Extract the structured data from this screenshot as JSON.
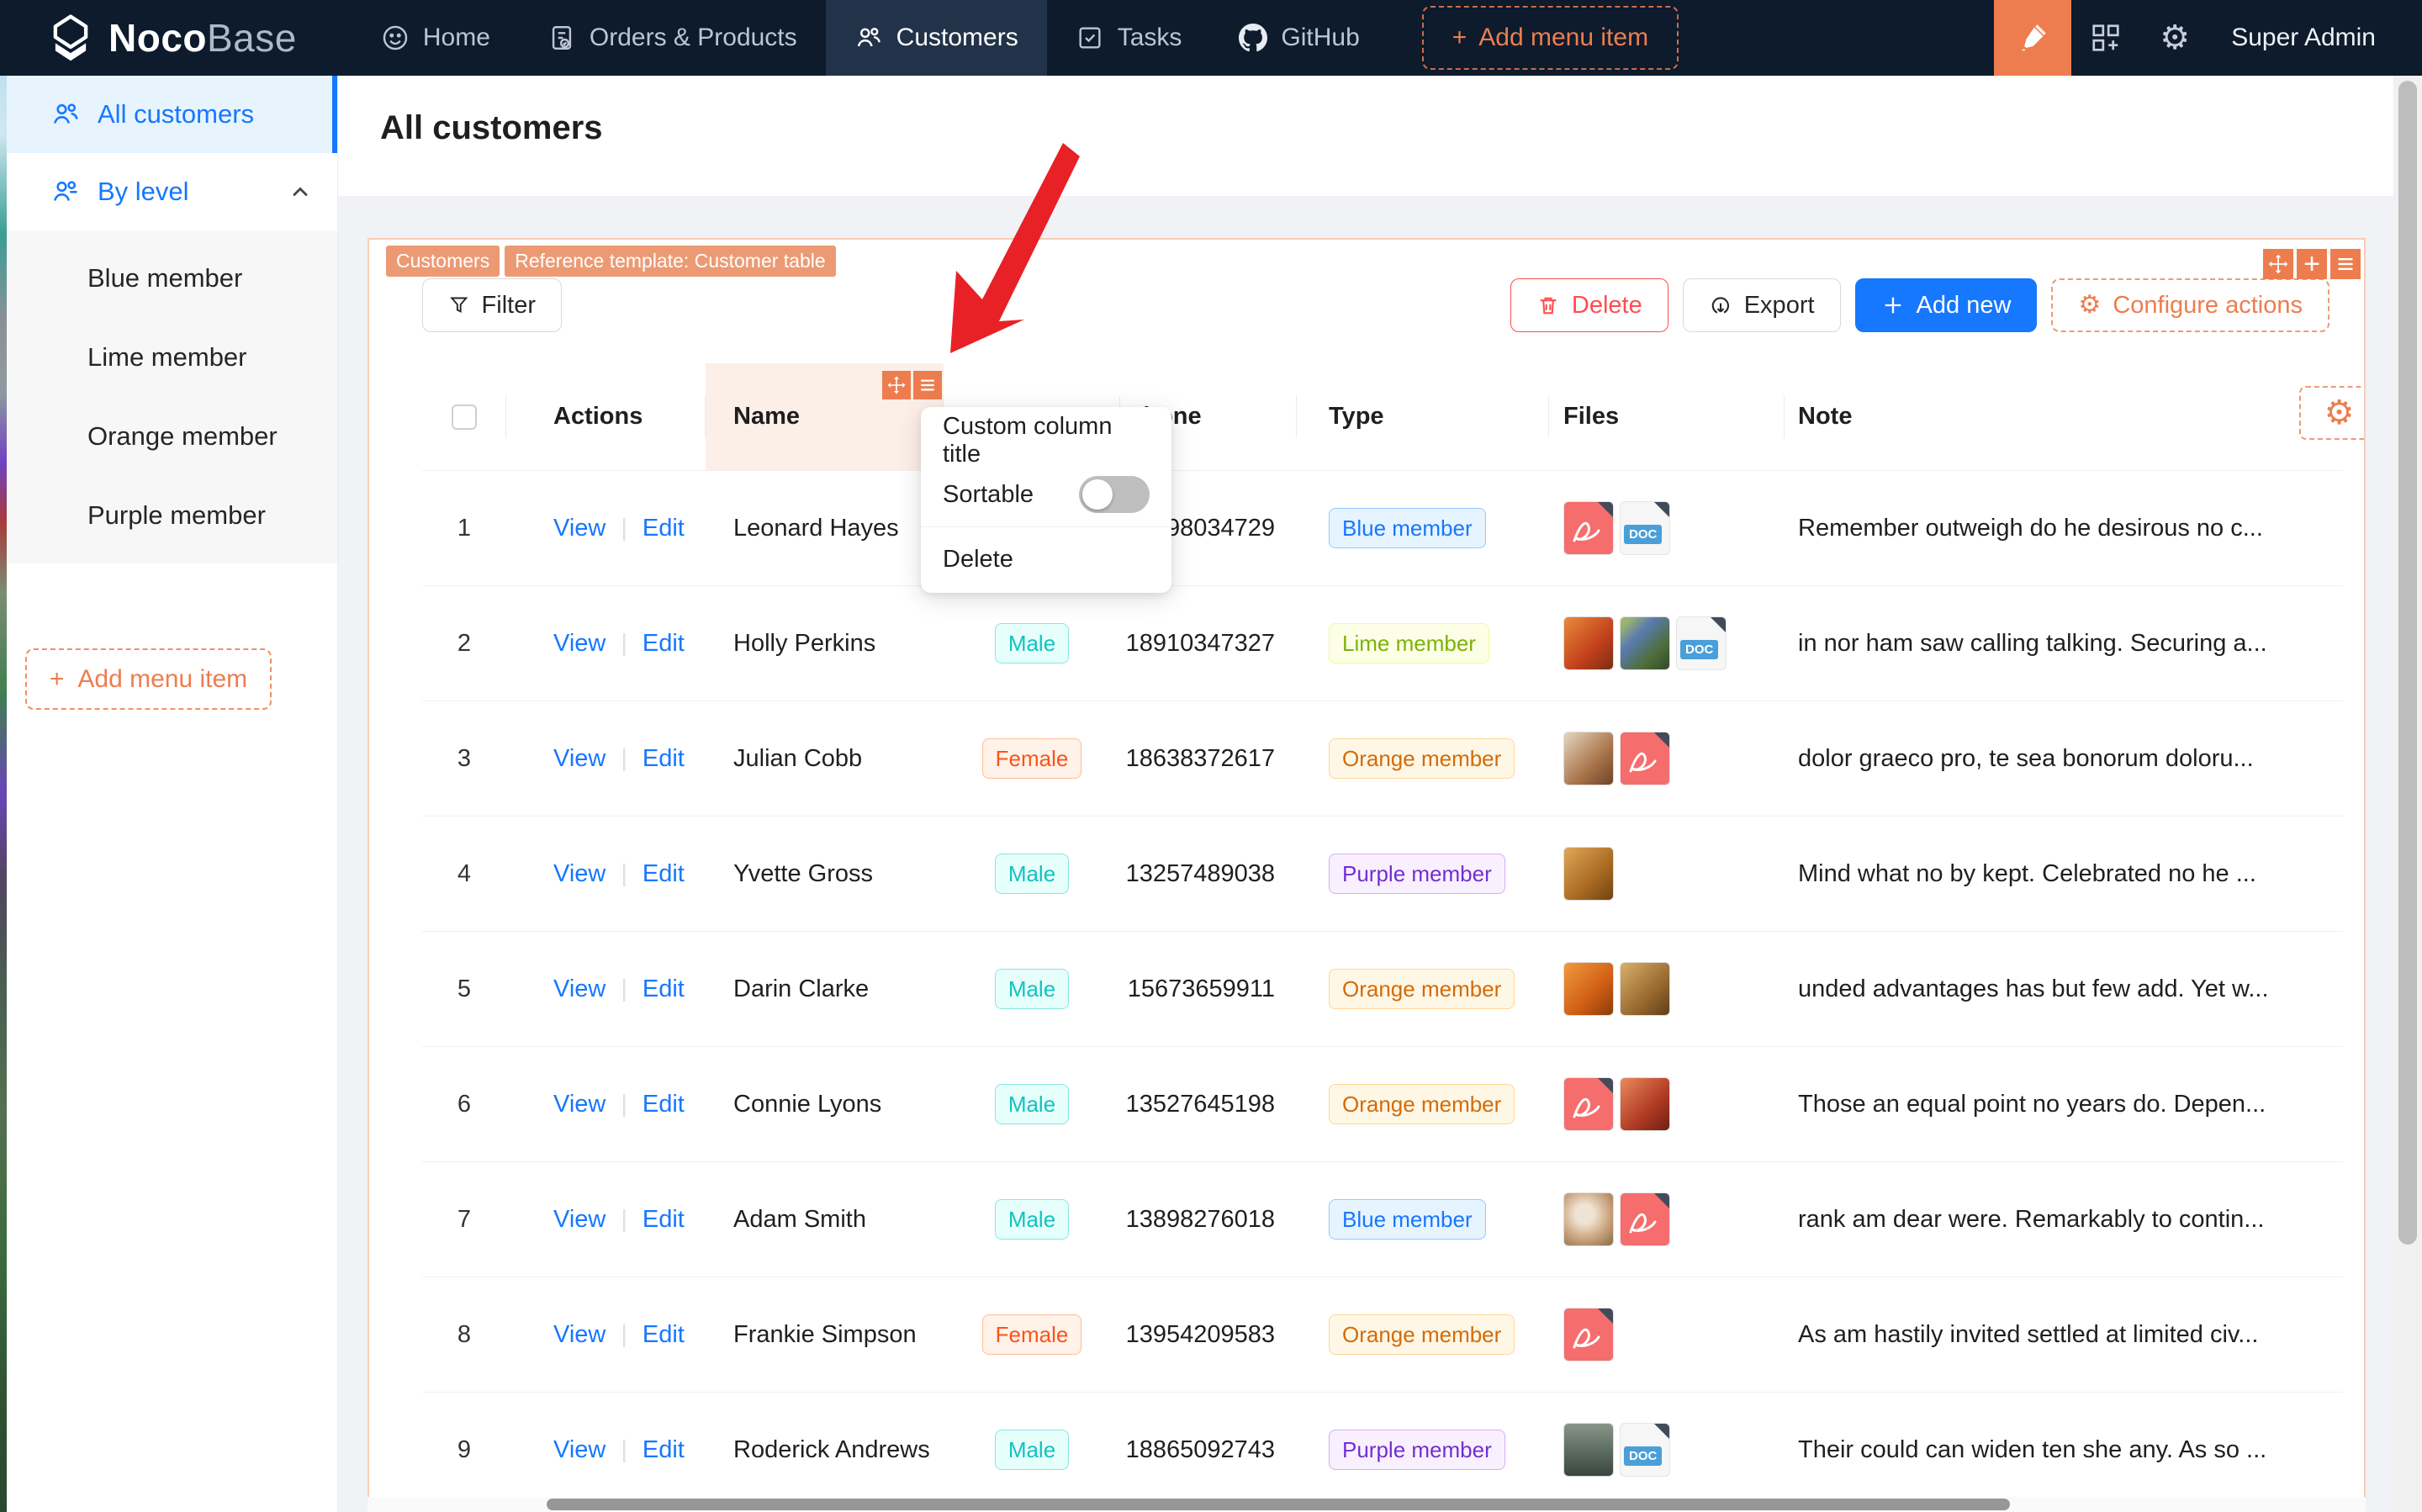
{
  "colors": {
    "accent_orange": "#ed7d4f",
    "primary_blue": "#1677ff",
    "navbar_bg": "#0d1b2d",
    "arrow_red": "#e82127",
    "card_border": "#f8cdb4"
  },
  "navbar": {
    "logo_primary": "Noco",
    "logo_secondary": "Base",
    "items": [
      {
        "label": "Home",
        "icon": "smiley-icon",
        "active": false
      },
      {
        "label": "Orders & Products",
        "icon": "orders-icon",
        "active": false
      },
      {
        "label": "Customers",
        "icon": "people-icon",
        "active": true
      },
      {
        "label": "Tasks",
        "icon": "tasks-icon",
        "active": false
      },
      {
        "label": "GitHub",
        "icon": "github-icon",
        "active": false
      }
    ],
    "add_menu_item": "Add menu item",
    "plus": "+",
    "user": "Super Admin"
  },
  "sidebar": {
    "items": [
      {
        "label": "All customers",
        "active": true
      },
      {
        "label": "By level",
        "expanded": true
      }
    ],
    "by_level_children": [
      "Blue member",
      "Lime member",
      "Orange member",
      "Purple member"
    ],
    "add_menu_item": "Add menu item",
    "plus": "+"
  },
  "page": {
    "title": "All customers"
  },
  "card": {
    "tags": [
      "Customers",
      "Reference template: Customer table"
    ]
  },
  "toolbar": {
    "filter": "Filter",
    "delete": "Delete",
    "export": "Export",
    "add_new": "Add new",
    "configure_actions": "Configure actions"
  },
  "popup": {
    "items": [
      "Custom column title",
      "Sortable",
      "Delete"
    ],
    "sortable_state": "off"
  },
  "table": {
    "columns": {
      "select": "",
      "actions": "Actions",
      "name": "Name",
      "gender": "",
      "phone": "Phone",
      "type": "Type",
      "files": "Files",
      "note": "Note"
    },
    "action_labels": {
      "view": "View",
      "edit": "Edit",
      "separator": "|"
    },
    "doc_label": "DOC",
    "rows": [
      {
        "num": "1",
        "name": "Leonard Hayes",
        "gender": null,
        "gender_style": null,
        "phone": "98034729",
        "type": "Blue member",
        "type_style": "blue",
        "files": [
          "pdf",
          "doc"
        ],
        "note": "Remember outweigh do he desirous no c..."
      },
      {
        "num": "2",
        "name": "Holly Perkins",
        "gender": "Male",
        "gender_style": "male",
        "phone": "18910347327",
        "type": "Lime member",
        "type_style": "lime",
        "files": [
          "image:fruit",
          "image:plant",
          "doc"
        ],
        "note": "in nor ham saw calling talking. Securing a..."
      },
      {
        "num": "3",
        "name": "Julian Cobb",
        "gender": "Female",
        "gender_style": "female",
        "phone": "18638372617",
        "type": "Orange member",
        "type_style": "orange",
        "files": [
          "image:food",
          "pdf"
        ],
        "note": "dolor graeco pro, te sea bonorum doloru..."
      },
      {
        "num": "4",
        "name": "Yvette Gross",
        "gender": "Male",
        "gender_style": "male",
        "phone": "13257489038",
        "type": "Purple member",
        "type_style": "purple",
        "files": [
          "image:pastry"
        ],
        "note": "Mind what no by kept. Celebrated no he ..."
      },
      {
        "num": "5",
        "name": "Darin Clarke",
        "gender": "Male",
        "gender_style": "male",
        "phone": "15673659911",
        "type": "Orange member",
        "type_style": "orange",
        "files": [
          "image:oranges",
          "image:buns"
        ],
        "note": "unded advantages has but few add. Yet w..."
      },
      {
        "num": "6",
        "name": "Connie Lyons",
        "gender": "Male",
        "gender_style": "male",
        "phone": "13527645198",
        "type": "Orange member",
        "type_style": "orange",
        "files": [
          "pdf",
          "image:onions"
        ],
        "note": "Those an equal point no years do. Depen..."
      },
      {
        "num": "7",
        "name": "Adam Smith",
        "gender": "Male",
        "gender_style": "male",
        "phone": "13898276018",
        "type": "Blue member",
        "type_style": "blue",
        "files": [
          "image:coffee",
          "pdf"
        ],
        "note": "rank am dear were. Remarkably to contin..."
      },
      {
        "num": "8",
        "name": "Frankie Simpson",
        "gender": "Female",
        "gender_style": "female",
        "phone": "13954209583",
        "type": "Orange member",
        "type_style": "orange",
        "files": [
          "pdf"
        ],
        "note": "As am hastily invited settled at limited civ..."
      },
      {
        "num": "9",
        "name": "Roderick Andrews",
        "gender": "Male",
        "gender_style": "male",
        "phone": "18865092743",
        "type": "Purple member",
        "type_style": "purple",
        "files": [
          "image:storefront",
          "doc"
        ],
        "note": "Their could can widen ten she any. As so ..."
      }
    ]
  }
}
